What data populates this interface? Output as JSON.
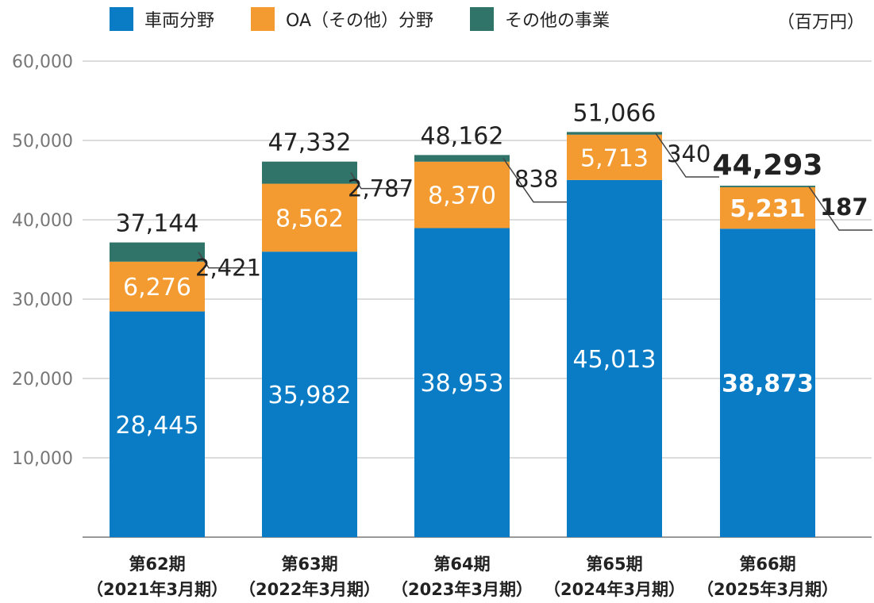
{
  "unit": "（百万円）",
  "colors": {
    "vehicle": "#0a7cc6",
    "oa": "#f39a30",
    "other": "#2f7369",
    "grid": "#d0d0d0",
    "axis": "#999999",
    "tick": "#777777",
    "label": "#222222"
  },
  "chart_data": {
    "type": "bar",
    "stacked": true,
    "categories": [
      [
        "第62期",
        "（2021年3月期）"
      ],
      [
        "第63期",
        "（2022年3月期）"
      ],
      [
        "第64期",
        "（2023年3月期）"
      ],
      [
        "第65期",
        "（2024年3月期）"
      ],
      [
        "第66期",
        "（2025年3月期）"
      ]
    ],
    "series": [
      {
        "name": "車両分野",
        "values": [
          28445,
          35982,
          38953,
          45013,
          38873
        ],
        "labels": [
          "28,445",
          "35,982",
          "38,953",
          "45,013",
          "38,873"
        ]
      },
      {
        "name": "OA（その他）分野",
        "values": [
          6276,
          8562,
          8370,
          5713,
          5231
        ],
        "labels": [
          "6,276",
          "8,562",
          "8,370",
          "5,713",
          "5,231"
        ]
      },
      {
        "name": "その他の事業",
        "values": [
          2421,
          2787,
          838,
          340,
          187
        ],
        "labels": [
          "2,421",
          "2,787",
          "838",
          "340",
          "187"
        ]
      }
    ],
    "totals": [
      37144,
      47332,
      48162,
      51066,
      44293
    ],
    "total_labels": [
      "37,144",
      "47,332",
      "48,162",
      "51,066",
      "44,293"
    ],
    "highlight_index": 4,
    "ylim": [
      0,
      60000
    ],
    "yticks": [
      10000,
      20000,
      30000,
      40000,
      50000,
      60000
    ],
    "ytick_labels": [
      "10,000",
      "20,000",
      "30,000",
      "40,000",
      "50,000",
      "60,000"
    ],
    "legend_position": "top",
    "grid": true
  }
}
